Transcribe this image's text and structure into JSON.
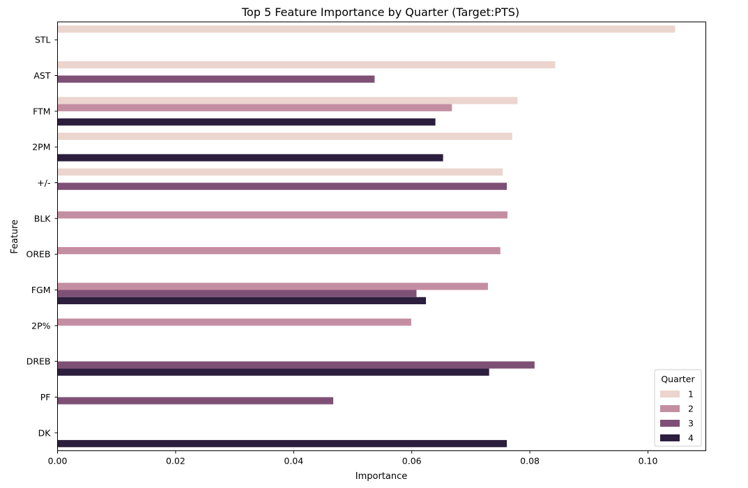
{
  "chart_data": {
    "type": "bar",
    "orientation": "horizontal",
    "title": "Top 5 Feature Importance by Quarter (Target:PTS)",
    "xlabel": "Importance",
    "ylabel": "Feature",
    "xlim": [
      0,
      0.1098
    ],
    "xticks": [
      0.0,
      0.02,
      0.04,
      0.06,
      0.08,
      0.1
    ],
    "xtick_labels": [
      "0.00",
      "0.02",
      "0.04",
      "0.06",
      "0.08",
      "0.10"
    ],
    "categories": [
      "STL",
      "AST",
      "FTM",
      "2PM",
      "+/-",
      "BLK",
      "OREB",
      "FGM",
      "2P%",
      "DREB",
      "PF",
      "DK"
    ],
    "grid": false,
    "legend": {
      "title": "Quarter",
      "placement": "lower-right"
    },
    "series": [
      {
        "name": "1",
        "color": "#ebd5ce",
        "values": [
          0.1046,
          0.0843,
          0.0779,
          0.077,
          0.0754,
          null,
          null,
          null,
          null,
          null,
          null,
          null
        ]
      },
      {
        "name": "2",
        "color": "#c48ea2",
        "values": [
          null,
          null,
          0.0668,
          null,
          null,
          0.0762,
          0.075,
          0.0729,
          0.0599,
          null,
          null,
          null
        ]
      },
      {
        "name": "3",
        "color": "#7e5076",
        "values": [
          null,
          0.0537,
          null,
          null,
          0.0761,
          null,
          null,
          0.0608,
          null,
          0.0808,
          0.0467,
          null
        ]
      },
      {
        "name": "4",
        "color": "#2c1e3d",
        "values": [
          null,
          null,
          0.064,
          0.0653,
          null,
          null,
          null,
          0.0624,
          null,
          0.0731,
          null,
          0.0761
        ]
      }
    ]
  }
}
